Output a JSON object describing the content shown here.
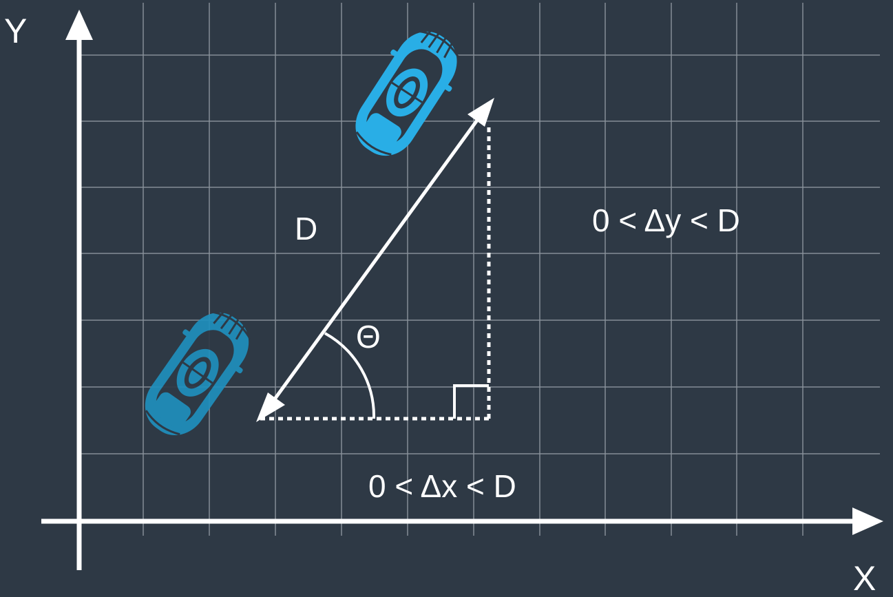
{
  "axes": {
    "y_label": "Y",
    "x_label": "X"
  },
  "labels": {
    "distance": "D",
    "angle": "Θ",
    "delta_y": "0 < Δy < D",
    "delta_x": "0 < Δx < D"
  },
  "colors": {
    "background": "#2e3945",
    "grid": "#8b949c",
    "axis": "#ffffff",
    "car_moved": "#29aee6",
    "car_origin": "#1f8fbd"
  },
  "icons": {
    "car_origin": "car-top-view-icon",
    "car_moved": "car-top-view-icon"
  }
}
